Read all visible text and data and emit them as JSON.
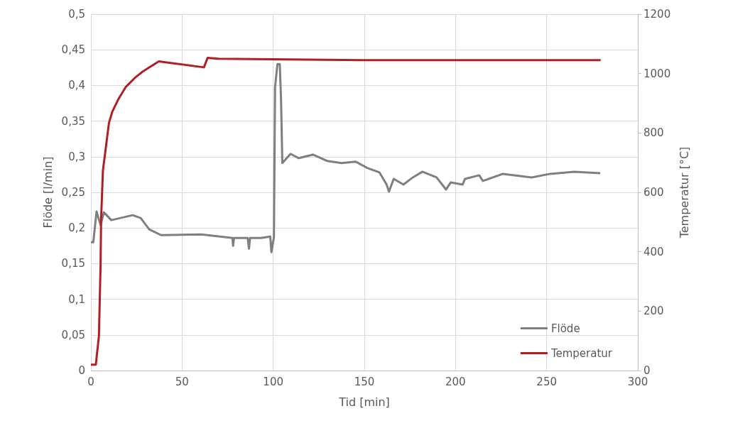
{
  "chart_data": {
    "type": "line",
    "xlabel": "Tid [min]",
    "ylabel": "Flöde [l/min]",
    "y2label": "Temperatur [°C]",
    "xlim": [
      0,
      300
    ],
    "xticks": [
      0,
      50,
      100,
      150,
      200,
      250,
      300
    ],
    "ylim": [
      0,
      0.5
    ],
    "yticks": [
      0,
      {
        "value": 0.05,
        "label": "0,05"
      },
      {
        "value": 0.1,
        "label": "0,1"
      },
      {
        "value": 0.15,
        "label": "0,15"
      },
      {
        "value": 0.2,
        "label": "0,2"
      },
      {
        "value": 0.25,
        "label": "0,25"
      },
      {
        "value": 0.3,
        "label": "0,3"
      },
      {
        "value": 0.35,
        "label": "0,35"
      },
      {
        "value": 0.4,
        "label": "0,4"
      },
      {
        "value": 0.45,
        "label": "0,45"
      },
      {
        "value": 0.5,
        "label": "0,5"
      }
    ],
    "y2lim": [
      0,
      1200
    ],
    "y2ticks": [
      0,
      200,
      400,
      600,
      800,
      1000,
      1200
    ],
    "grid": true,
    "legend": "bottom right",
    "marker": "none",
    "line_style": "solid",
    "series": [
      {
        "name": "Flöde",
        "color": "#7f7f7f",
        "x": [
          0,
          1.3,
          3.1,
          5.3,
          7.1,
          11.2,
          22.9,
          27.3,
          32,
          38.5,
          60.6,
          77.6,
          78,
          78.5,
          86,
          86.7,
          87.3,
          93.4,
          98.4,
          99,
          100.4,
          101,
          102.3,
          103.6,
          104.3,
          105,
          109.5,
          114,
          121.9,
          129.7,
          137.5,
          145.3,
          151.8,
          158.3,
          162.2,
          163.5,
          166.1,
          171.4,
          176.6,
          181.8,
          189.6,
          194.8,
          197.4,
          203.9,
          205.2,
          213,
          215,
          226,
          241.7,
          252,
          265,
          279.4
        ],
        "values": [
          0.18,
          0.18,
          0.223,
          0.204,
          0.222,
          0.211,
          0.218,
          0.214,
          0.198,
          0.19,
          0.191,
          0.186,
          0.175,
          0.186,
          0.186,
          0.171,
          0.186,
          0.186,
          0.188,
          0.166,
          0.187,
          0.397,
          0.43,
          0.43,
          0.38,
          0.291,
          0.304,
          0.298,
          0.303,
          0.294,
          0.291,
          0.293,
          0.284,
          0.278,
          0.261,
          0.251,
          0.269,
          0.261,
          0.271,
          0.279,
          0.271,
          0.254,
          0.264,
          0.261,
          0.269,
          0.274,
          0.266,
          0.276,
          0.271,
          0.276,
          0.279,
          0.277
        ]
      },
      {
        "name": "Temperatur",
        "color": "#b01f24",
        "axis": "y2",
        "x": [
          0,
          2.7,
          4.4,
          5.3,
          5.6,
          6.6,
          9.9,
          11.8,
          15,
          19,
          24,
          28,
          37.2,
          62,
          64,
          70,
          150,
          279.6
        ],
        "values": [
          20,
          20,
          117,
          356,
          514,
          674,
          834,
          873,
          913,
          954,
          985,
          1005,
          1041,
          1021,
          1053,
          1050,
          1045,
          1045
        ]
      }
    ]
  }
}
